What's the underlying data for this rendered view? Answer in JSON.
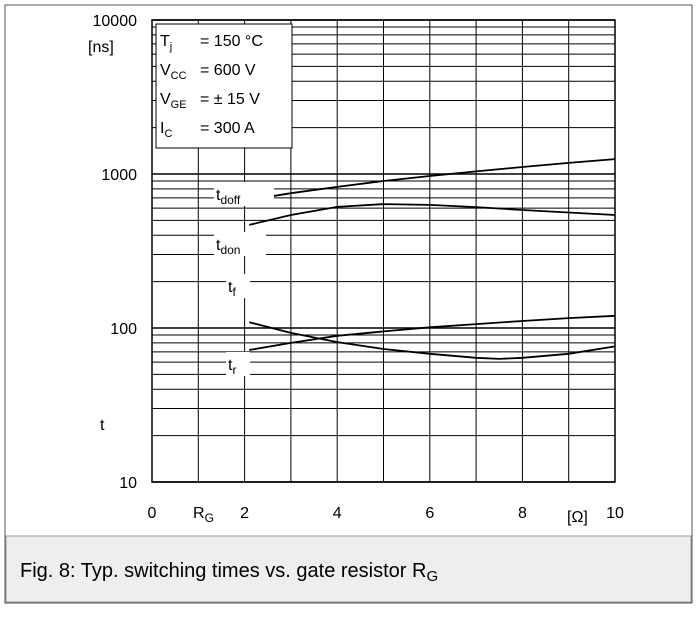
{
  "chart_data": {
    "type": "line",
    "log_y": true,
    "grid": true,
    "minor_grid": true,
    "color": "#000000",
    "xlim": [
      0,
      10
    ],
    "xticks": [
      0,
      2,
      4,
      6,
      8,
      10
    ],
    "ylim": [
      10,
      10000
    ],
    "yticks": [
      10,
      100,
      1000,
      10000
    ],
    "y_label_top": "[ns]",
    "y_label": "t",
    "x_label": {
      "text": "R",
      "sub": "G"
    },
    "x_unit": "[Ω]",
    "conditions": [
      {
        "symbol": "T",
        "sub": "j",
        "text": "= 150 °C"
      },
      {
        "symbol": "V",
        "sub": "CC",
        "text": "= 600 V"
      },
      {
        "symbol": "V",
        "sub": "GE",
        "text": "= ± 15 V"
      },
      {
        "symbol": "I",
        "sub": "C",
        "text": "= 300 A"
      }
    ],
    "series": [
      {
        "name": "t",
        "sub": "doff",
        "x": [
          2.1,
          3,
          4,
          5,
          6,
          7,
          8,
          9,
          10
        ],
        "values": [
          678,
          750,
          824,
          900,
          970,
          1040,
          1110,
          1180,
          1250
        ]
      },
      {
        "name": "t",
        "sub": "don",
        "x": [
          2.1,
          3,
          4,
          5,
          6,
          7,
          8,
          9,
          10
        ],
        "values": [
          467,
          542,
          611,
          638,
          630,
          610,
          584,
          562,
          542
        ]
      },
      {
        "name": "t",
        "sub": "f",
        "x": [
          2.1,
          3,
          4,
          5,
          6,
          7,
          7.5,
          8,
          9,
          10
        ],
        "values": [
          109,
          93,
          81,
          73,
          68,
          64,
          63,
          64,
          68,
          76
        ]
      },
      {
        "name": "t",
        "sub": "r",
        "x": [
          2.1,
          3,
          4,
          5,
          6,
          7,
          8,
          9,
          10
        ],
        "values": [
          72,
          80,
          89,
          95,
          101,
          106,
          111,
          116,
          120
        ]
      }
    ],
    "caption": {
      "text": "Fig. 8: Typ. switching times vs. gate resistor R",
      "sub": "G"
    }
  }
}
